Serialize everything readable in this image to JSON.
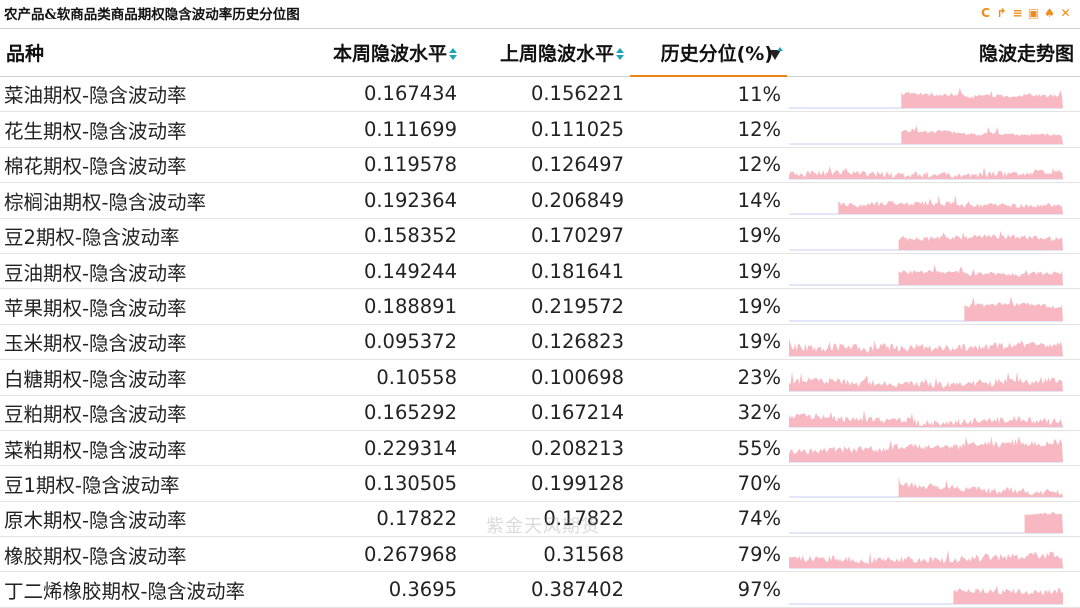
{
  "title": "农产品&软商品类商品期权隐含波动率历史分位图",
  "toolbar": [
    {
      "icon": "refresh-icon",
      "glyph": "C"
    },
    {
      "icon": "share-icon",
      "glyph": "↱"
    },
    {
      "icon": "list-icon",
      "glyph": "≡"
    },
    {
      "icon": "image-save-icon",
      "glyph": "▣"
    },
    {
      "icon": "bell-icon",
      "glyph": "♠"
    },
    {
      "icon": "expand-icon",
      "glyph": "✕"
    }
  ],
  "columns": {
    "name": "品种",
    "this_week": "本周隐波水平",
    "last_week": "上周隐波水平",
    "percentile": "历史分位(%)",
    "trend": "隐波走势图"
  },
  "accent_color": "#e8861a",
  "sparkline_color": "#f8b8c2",
  "watermark": "紫金天风期货",
  "rows": [
    {
      "name": "菜油期权-隐含波动率",
      "this_week": "0.167434",
      "last_week": "0.156221",
      "percentile": "11%",
      "trend_start": 0.41,
      "trend_level": 0.55,
      "trend_noise": 0.15,
      "seed": 3
    },
    {
      "name": "花生期权-隐含波动率",
      "this_week": "0.111699",
      "last_week": "0.111025",
      "percentile": "12%",
      "trend_start": 0.41,
      "trend_level": 0.5,
      "trend_noise": 0.12,
      "seed": 7
    },
    {
      "name": "棉花期权-隐含波动率",
      "this_week": "0.119578",
      "last_week": "0.126497",
      "percentile": "12%",
      "trend_start": 0.0,
      "trend_level": 0.2,
      "trend_noise": 0.25,
      "seed": 11
    },
    {
      "name": "棕榈油期权-隐含波动率",
      "this_week": "0.192364",
      "last_week": "0.206849",
      "percentile": "14%",
      "trend_start": 0.18,
      "trend_level": 0.38,
      "trend_noise": 0.2,
      "seed": 13
    },
    {
      "name": "豆2期权-隐含波动率",
      "this_week": "0.158352",
      "last_week": "0.170297",
      "percentile": "19%",
      "trend_start": 0.4,
      "trend_level": 0.45,
      "trend_noise": 0.18,
      "seed": 17
    },
    {
      "name": "豆油期权-隐含波动率",
      "this_week": "0.149244",
      "last_week": "0.181641",
      "percentile": "19%",
      "trend_start": 0.4,
      "trend_level": 0.5,
      "trend_noise": 0.14,
      "seed": 19
    },
    {
      "name": "苹果期权-隐含波动率",
      "this_week": "0.188891",
      "last_week": "0.219572",
      "percentile": "19%",
      "trend_start": 0.64,
      "trend_level": 0.55,
      "trend_noise": 0.15,
      "seed": 23
    },
    {
      "name": "玉米期权-隐含波动率",
      "this_week": "0.095372",
      "last_week": "0.126823",
      "percentile": "19%",
      "trend_start": 0.0,
      "trend_level": 0.35,
      "trend_noise": 0.3,
      "seed": 29
    },
    {
      "name": "白糖期权-隐含波动率",
      "this_week": "0.10558",
      "last_week": "0.100698",
      "percentile": "23%",
      "trend_start": 0.0,
      "trend_level": 0.4,
      "trend_noise": 0.28,
      "seed": 31
    },
    {
      "name": "豆粕期权-隐含波动率",
      "this_week": "0.165292",
      "last_week": "0.167214",
      "percentile": "32%",
      "trend_start": 0.0,
      "trend_level": 0.35,
      "trend_noise": 0.3,
      "seed": 37
    },
    {
      "name": "菜粕期权-隐含波动率",
      "this_week": "0.229314",
      "last_week": "0.208213",
      "percentile": "55%",
      "trend_start": 0.0,
      "trend_level": 0.38,
      "trend_noise": 0.28,
      "seed": 41
    },
    {
      "name": "豆1期权-隐含波动率",
      "this_week": "0.130505",
      "last_week": "0.199128",
      "percentile": "70%",
      "trend_start": 0.4,
      "trend_level": 0.45,
      "trend_noise": 0.25,
      "seed": 43
    },
    {
      "name": "原木期权-隐含波动率",
      "this_week": "0.17822",
      "last_week": "0.17822",
      "percentile": "74%",
      "trend_start": 0.86,
      "trend_level": 0.7,
      "trend_noise": 0.08,
      "seed": 47
    },
    {
      "name": "橡胶期权-隐含波动率",
      "this_week": "0.267968",
      "last_week": "0.31568",
      "percentile": "79%",
      "trend_start": 0.0,
      "trend_level": 0.42,
      "trend_noise": 0.28,
      "seed": 53
    },
    {
      "name": "丁二烯橡胶期权-隐含波动率",
      "this_week": "0.3695",
      "last_week": "0.387402",
      "percentile": "97%",
      "trend_start": 0.6,
      "trend_level": 0.5,
      "trend_noise": 0.25,
      "seed": 59
    }
  ]
}
